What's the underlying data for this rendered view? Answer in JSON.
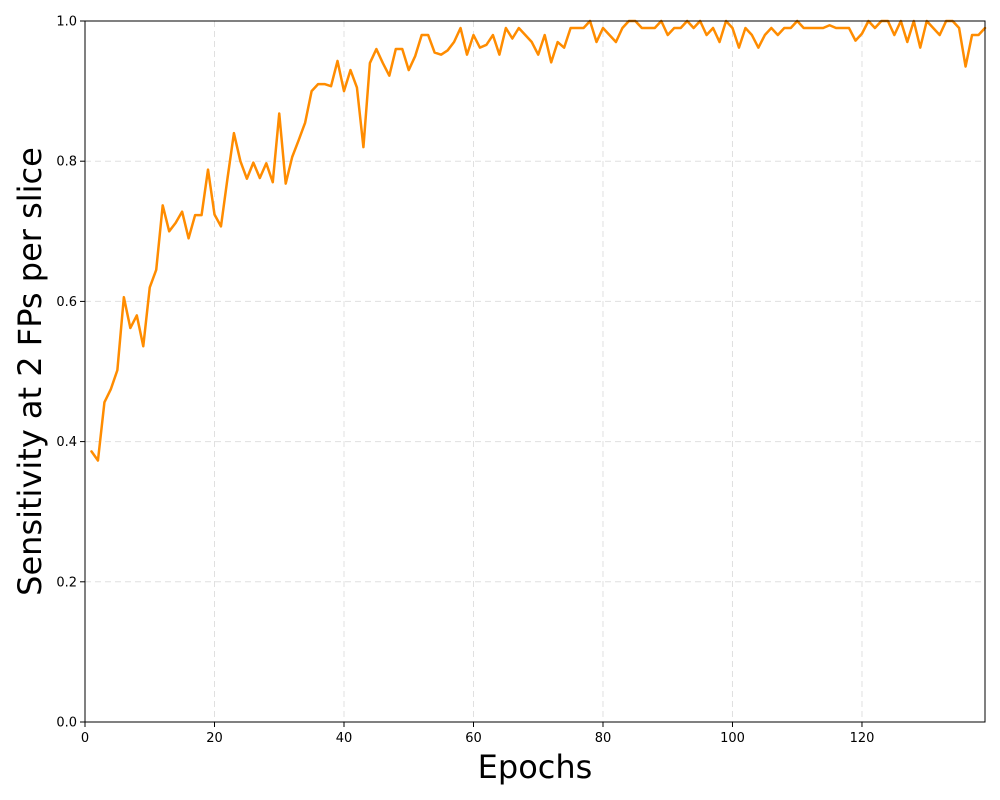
{
  "chart_data": {
    "type": "line",
    "title": "",
    "xlabel": "Epochs",
    "ylabel": "Sensitivity at 2 FPs per slice",
    "xlim": [
      0,
      139
    ],
    "ylim": [
      0,
      1.0
    ],
    "xticks": [
      0,
      20,
      40,
      60,
      80,
      100,
      120
    ],
    "xtick_labels": [
      "0",
      "20",
      "40",
      "60",
      "80",
      "100",
      "120"
    ],
    "yticks": [
      0,
      0.2,
      0.4,
      0.6,
      0.8,
      1.0
    ],
    "ytick_labels": [
      "0.0",
      "0.2",
      "0.4",
      "0.6",
      "0.8",
      "1.0"
    ],
    "grid": true,
    "legend": false,
    "series": [
      {
        "color": "#ff8c00",
        "x": [
          1,
          2,
          3,
          4,
          5,
          6,
          7,
          8,
          9,
          10,
          11,
          12,
          13,
          14,
          15,
          16,
          17,
          18,
          19,
          20,
          21,
          22,
          23,
          24,
          25,
          26,
          27,
          28,
          29,
          30,
          31,
          32,
          33,
          34,
          35,
          36,
          37,
          38,
          39,
          40,
          41,
          42,
          43,
          44,
          45,
          46,
          47,
          48,
          49,
          50,
          51,
          52,
          53,
          54,
          55,
          56,
          57,
          58,
          59,
          60,
          61,
          62,
          63,
          64,
          65,
          66,
          67,
          68,
          69,
          70,
          71,
          72,
          73,
          74,
          75,
          76,
          77,
          78,
          79,
          80,
          81,
          82,
          83,
          84,
          85,
          86,
          87,
          88,
          89,
          90,
          91,
          92,
          93,
          94,
          95,
          96,
          97,
          98,
          99,
          100,
          101,
          102,
          103,
          104,
          105,
          106,
          107,
          108,
          109,
          110,
          111,
          112,
          113,
          114,
          115,
          116,
          117,
          118,
          119,
          120,
          121,
          122,
          123,
          124,
          125,
          126,
          127,
          128,
          129,
          130,
          131,
          132,
          133,
          134,
          135,
          136,
          137,
          138,
          139
        ],
        "y": [
          0.386,
          0.373,
          0.456,
          0.475,
          0.502,
          0.606,
          0.562,
          0.58,
          0.536,
          0.62,
          0.645,
          0.737,
          0.7,
          0.712,
          0.728,
          0.69,
          0.723,
          0.723,
          0.788,
          0.724,
          0.707,
          0.775,
          0.84,
          0.8,
          0.775,
          0.798,
          0.776,
          0.797,
          0.77,
          0.868,
          0.768,
          0.806,
          0.83,
          0.855,
          0.9,
          0.91,
          0.91,
          0.907,
          0.943,
          0.9,
          0.93,
          0.905,
          0.82,
          0.94,
          0.96,
          0.94,
          0.922,
          0.96,
          0.96,
          0.93,
          0.95,
          0.98,
          0.98,
          0.955,
          0.952,
          0.958,
          0.97,
          0.99,
          0.952,
          0.98,
          0.962,
          0.966,
          0.98,
          0.952,
          0.99,
          0.975,
          0.99,
          0.98,
          0.97,
          0.952,
          0.98,
          0.941,
          0.97,
          0.962,
          0.99,
          0.99,
          0.99,
          1.0,
          0.97,
          0.99,
          0.98,
          0.97,
          0.99,
          1.0,
          1.0,
          0.99,
          0.99,
          0.99,
          1.0,
          0.98,
          0.99,
          0.99,
          1.0,
          0.99,
          1.0,
          0.98,
          0.99,
          0.97,
          1.0,
          0.99,
          0.962,
          0.99,
          0.98,
          0.962,
          0.98,
          0.99,
          0.98,
          0.99,
          0.99,
          1.0,
          0.99,
          0.99,
          0.99,
          0.99,
          0.994,
          0.99,
          0.99,
          0.99,
          0.972,
          0.982,
          1.0,
          0.99,
          1.0,
          1.0,
          0.98,
          1.0,
          0.97,
          1.0,
          0.962,
          1.0,
          0.99,
          0.98,
          1.0,
          1.0,
          0.99,
          0.935,
          0.98,
          0.98,
          0.99
        ]
      }
    ]
  }
}
